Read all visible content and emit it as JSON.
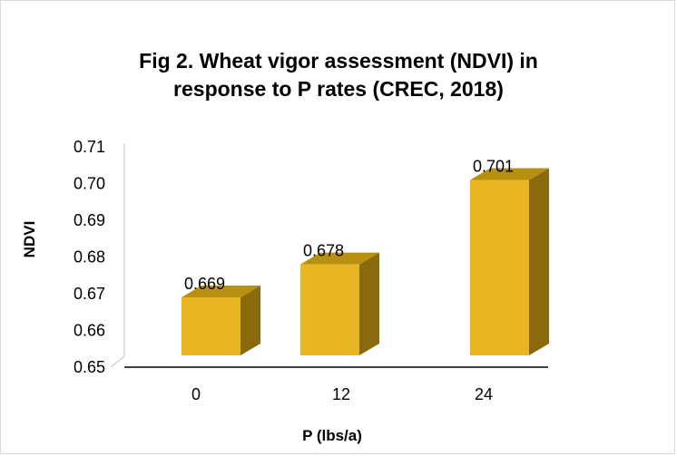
{
  "chart_data": {
    "type": "bar",
    "title": [
      "Fig 2. Wheat vigor assessment (NDVI) in",
      "response to P rates (CREC, 2018)"
    ],
    "xlabel": "P (lbs/a)",
    "ylabel": "NDVI",
    "categories": [
      "0",
      "12",
      "24"
    ],
    "values": [
      0.669,
      0.678,
      0.701
    ],
    "data_labels": [
      "0.669",
      "0.678",
      "0.701"
    ],
    "yticks": [
      "0.65",
      "0.66",
      "0.67",
      "0.68",
      "0.69",
      "0.70",
      "0.71"
    ],
    "ylim": [
      0.65,
      0.71
    ],
    "grid": false,
    "style": "3d-column",
    "colors": {
      "front": "#E8B523",
      "side": "#8A6A0C",
      "top": "#B8900F"
    }
  }
}
